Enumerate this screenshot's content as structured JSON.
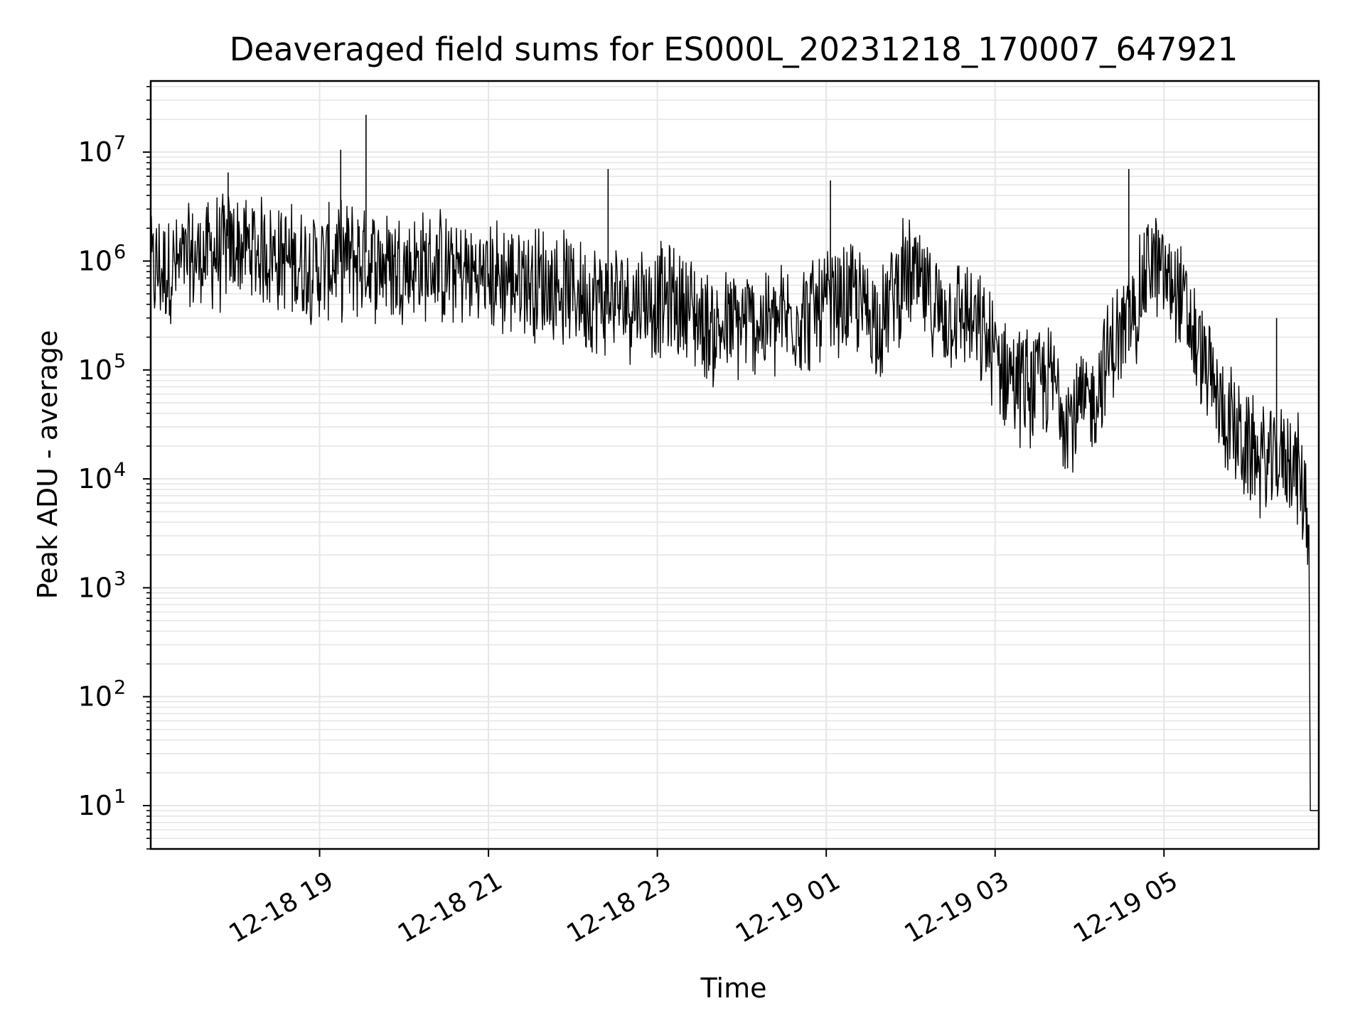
{
  "chart_data": {
    "type": "line",
    "title": "Deaveraged field sums for ES000L_20231218_170007_647921",
    "xlabel": "Time",
    "ylabel": "Peak ADU - average",
    "y_scale": "log",
    "ylim": [
      4,
      45000000
    ],
    "xlim": [
      "2023-12-18 17:00",
      "2023-12-19 06:50"
    ],
    "grid": true,
    "line_color": "#000000",
    "grid_color": "#e6e6e6",
    "x_ticks": [
      {
        "t": "2023-12-18 19:00",
        "label": "12-18 19"
      },
      {
        "t": "2023-12-18 21:00",
        "label": "12-18 21"
      },
      {
        "t": "2023-12-18 23:00",
        "label": "12-18 23"
      },
      {
        "t": "2023-12-19 01:00",
        "label": "12-19 01"
      },
      {
        "t": "2023-12-19 03:00",
        "label": "12-19 03"
      },
      {
        "t": "2023-12-19 05:00",
        "label": "12-19 05"
      }
    ],
    "y_ticks": [
      {
        "value": 10,
        "base": "10",
        "exp": "1"
      },
      {
        "value": 100,
        "base": "10",
        "exp": "2"
      },
      {
        "value": 1000,
        "base": "10",
        "exp": "3"
      },
      {
        "value": 10000,
        "base": "10",
        "exp": "4"
      },
      {
        "value": 100000,
        "base": "10",
        "exp": "5"
      },
      {
        "value": 1000000,
        "base": "10",
        "exp": "6"
      },
      {
        "value": 10000000,
        "base": "10",
        "exp": "7"
      }
    ],
    "series": [
      {
        "x": [
          "2023-12-18 17:00",
          "2023-12-18 17:20",
          "2023-12-18 17:40",
          "2023-12-18 18:00",
          "2023-12-18 18:20",
          "2023-12-18 18:40",
          "2023-12-18 19:00",
          "2023-12-18 19:20",
          "2023-12-18 19:40",
          "2023-12-18 20:00",
          "2023-12-18 20:20",
          "2023-12-18 20:40",
          "2023-12-18 21:00",
          "2023-12-18 21:20",
          "2023-12-18 21:40",
          "2023-12-18 22:00",
          "2023-12-18 22:20",
          "2023-12-18 22:40",
          "2023-12-18 23:00",
          "2023-12-18 23:20",
          "2023-12-18 23:40",
          "2023-12-19 00:00",
          "2023-12-19 00:20",
          "2023-12-19 00:40",
          "2023-12-19 01:00",
          "2023-12-19 01:20",
          "2023-12-19 01:40",
          "2023-12-19 01:50",
          "2023-12-19 02:00",
          "2023-12-19 02:20",
          "2023-12-19 02:40",
          "2023-12-19 03:00",
          "2023-12-19 03:20",
          "2023-12-19 03:40",
          "2023-12-19 03:55",
          "2023-12-19 04:10",
          "2023-12-19 04:20",
          "2023-12-19 04:40",
          "2023-12-19 04:50",
          "2023-12-19 05:00",
          "2023-12-19 05:10",
          "2023-12-19 05:20",
          "2023-12-19 05:40",
          "2023-12-19 06:00",
          "2023-12-19 06:15",
          "2023-12-19 06:30",
          "2023-12-19 06:40",
          "2023-12-19 06:43",
          "2023-12-19 06:50"
        ],
        "y": [
          900000,
          1000000,
          1300000,
          1500000,
          1400000,
          1100000,
          1000000,
          1200000,
          1100000,
          1000000,
          1000000,
          900000,
          800000,
          800000,
          700000,
          600000,
          500000,
          500000,
          500000,
          450000,
          250000,
          300000,
          300000,
          350000,
          400000,
          500000,
          300000,
          700000,
          800000,
          400000,
          350000,
          150000,
          80000,
          90000,
          40000,
          60000,
          150000,
          400000,
          1200000,
          800000,
          600000,
          250000,
          50000,
          20000,
          15000,
          20000,
          8000,
          4000,
          9
        ]
      }
    ],
    "peaks": [
      {
        "t": "2023-12-18 19:33",
        "y": 22000000
      },
      {
        "t": "2023-12-18 19:15",
        "y": 10500000
      },
      {
        "t": "2023-12-18 17:55",
        "y": 6500000
      },
      {
        "t": "2023-12-18 22:25",
        "y": 7000000
      },
      {
        "t": "2023-12-19 01:03",
        "y": 5500000
      },
      {
        "t": "2023-12-19 04:35",
        "y": 7000000
      },
      {
        "t": "2023-12-19 06:20",
        "y": 300000
      }
    ]
  }
}
